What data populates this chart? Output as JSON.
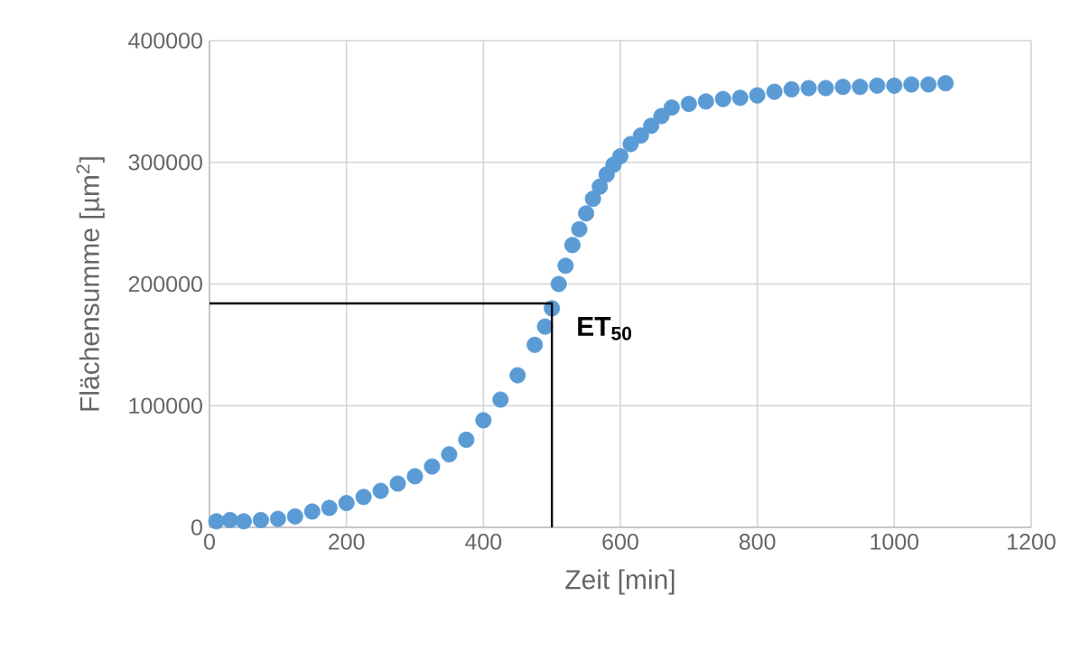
{
  "chart_data": {
    "type": "scatter",
    "xlabel": "Zeit [min]",
    "ylabel": "Flächensumme [µm$^{2}$]",
    "xlim": [
      0,
      1200
    ],
    "ylim": [
      0,
      400000
    ],
    "xticks": [
      0,
      200,
      400,
      600,
      800,
      1000,
      1200
    ],
    "yticks": [
      0,
      100000,
      200000,
      300000,
      400000
    ],
    "grid": true,
    "series": [
      {
        "marker": "circle",
        "color": "#5b9bd5",
        "x": [
          10,
          30,
          50,
          75,
          100,
          125,
          150,
          175,
          200,
          225,
          250,
          275,
          300,
          325,
          350,
          375,
          400,
          425,
          450,
          475,
          490,
          500,
          510,
          520,
          530,
          540,
          550,
          560,
          570,
          580,
          590,
          600,
          615,
          630,
          645,
          660,
          675,
          700,
          725,
          750,
          775,
          800,
          825,
          850,
          875,
          900,
          925,
          950,
          975,
          1000,
          1025,
          1050,
          1075
        ],
        "values": [
          5000,
          6000,
          5000,
          6000,
          7000,
          9000,
          13000,
          16000,
          20000,
          25000,
          30000,
          36000,
          42000,
          50000,
          60000,
          72000,
          88000,
          105000,
          125000,
          150000,
          165000,
          180000,
          200000,
          215000,
          232000,
          245000,
          258000,
          270000,
          280000,
          290000,
          298000,
          305000,
          315000,
          322000,
          330000,
          338000,
          345000,
          348000,
          350000,
          352000,
          353000,
          355000,
          358000,
          360000,
          361000,
          361000,
          362000,
          362000,
          363000,
          363000,
          364000,
          364000,
          365000
        ]
      },
      {
        "type": "line",
        "marker": "none",
        "color": "#000000",
        "x": [
          0,
          500,
          500
        ],
        "values": [
          184000,
          184000,
          0
        ]
      }
    ],
    "annotations": [
      {
        "text": "ET$_{50}$",
        "x": 500,
        "y": 184000
      }
    ]
  }
}
